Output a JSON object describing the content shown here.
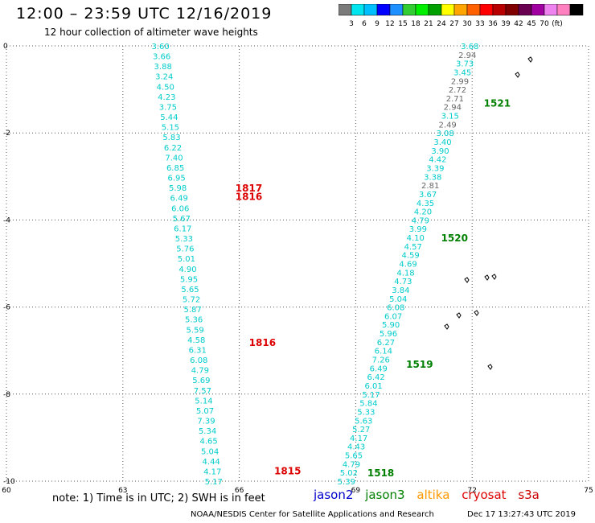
{
  "header": {
    "title": "12:00 – 23:59 UTC 12/16/2019",
    "subtitle": "12 hour collection of altimeter wave heights"
  },
  "colorbar": {
    "colors": [
      "#7b7b7b",
      "#00e5ee",
      "#00bfff",
      "#0000ff",
      "#1e90ff",
      "#32cd32",
      "#00ee00",
      "#00a000",
      "#ffff00",
      "#ffa500",
      "#ff6000",
      "#ff0000",
      "#b80000",
      "#800000",
      "#6a0050",
      "#a000a0",
      "#ee82ee",
      "#ff80c0",
      "#000000"
    ],
    "labels": [
      "3",
      "6",
      "9",
      "12",
      "15",
      "18",
      "21",
      "24",
      "27",
      "30",
      "33",
      "36",
      "39",
      "42",
      "45",
      "70",
      "(ft)"
    ]
  },
  "footer": {
    "note": "note:  1) Time is in UTC; 2) SWH is in feet",
    "satellites": [
      {
        "name": "jason2",
        "color": "#0000cc"
      },
      {
        "name": "jason3",
        "color": "#008000"
      },
      {
        "name": "altika",
        "color": "#ff9900"
      },
      {
        "name": "cryosat",
        "color": "#dd0000"
      },
      {
        "name": "s3a",
        "color": "#cc0000"
      }
    ],
    "credit": "NOAA/NESDIS Center for Satellite Applications and Research",
    "timestamp": "Dec 17 13:27:43 UTC 2019"
  },
  "chart_data": {
    "type": "scatter",
    "title": "12:00 – 23:59 UTC 12/16/2019",
    "xlim": [
      60,
      75
    ],
    "ylim": [
      -10,
      0
    ],
    "x_ticks": [
      "60",
      "63",
      "66",
      "69",
      "72",
      "75"
    ],
    "y_ticks": [
      "0",
      "-2",
      "-4",
      "-6",
      "-8",
      "-10"
    ],
    "grid": true,
    "series": [
      {
        "name": "cryosat",
        "label_color": "#dd0000",
        "track": [
          [
            63.97,
            0
          ],
          [
            65.34,
            -10
          ]
        ],
        "values": [
          "3.60",
          "3.66",
          "3.88",
          "3.24",
          "4.50",
          "4.23",
          "3.75",
          "5.44",
          "5.15",
          "5.83",
          "6.22",
          "7.40",
          "6.85",
          "6.95",
          "5.98",
          "6.49",
          "6.06",
          "5.67",
          "6.17",
          "5.33",
          "5.76",
          "5.01",
          "4.90",
          "5.95",
          "5.65",
          "5.72",
          "5.87",
          "5.36",
          "5.59",
          "4.58",
          "6.31",
          "6.08",
          "4.79",
          "5.69",
          "7.57",
          "5.14",
          "5.07",
          "7.39",
          "5.34",
          "4.65",
          "5.04",
          "4.44",
          "4.17",
          "5.17"
        ],
        "time_labels": [
          {
            "text": "1817",
            "x": 65.9,
            "y": -3.25
          },
          {
            "text": "1816",
            "x": 65.9,
            "y": -3.45
          },
          {
            "text": "1816",
            "x": 66.25,
            "y": -6.8
          },
          {
            "text": "1815",
            "x": 66.9,
            "y": -9.75
          }
        ]
      },
      {
        "name": "jason3",
        "label_color": "#008000",
        "track": [
          [
            71.94,
            0
          ],
          [
            68.76,
            -10
          ]
        ],
        "values": [
          "3.68",
          "2.94",
          "3.73",
          "3.45",
          "2.99",
          "2.72",
          "2.71",
          "2.94",
          "3.15",
          "2.49",
          "3.08",
          "3.40",
          "3.90",
          "4.42",
          "3.39",
          "3.38",
          "2.81",
          "3.67",
          "4.35",
          "4.20",
          "4.79",
          "3.99",
          "4.10",
          "4.57",
          "4.59",
          "4.69",
          "4.18",
          "4.73",
          "3.84",
          "5.04",
          "6.08",
          "6.07",
          "5.90",
          "5.96",
          "6.27",
          "6.14",
          "7.26",
          "6.49",
          "6.42",
          "6.01",
          "5.17",
          "5.84",
          "5.33",
          "5.63",
          "5.27",
          "4.17",
          "4.43",
          "5.65",
          "4.79",
          "5.02",
          "5.39"
        ],
        "time_labels": [
          {
            "text": "1521",
            "x": 72.3,
            "y": -1.3
          },
          {
            "text": "1520",
            "x": 71.2,
            "y": -4.4
          },
          {
            "text": "1519",
            "x": 70.3,
            "y": -7.3
          },
          {
            "text": "1518",
            "x": 69.3,
            "y": -9.8
          }
        ]
      }
    ]
  }
}
